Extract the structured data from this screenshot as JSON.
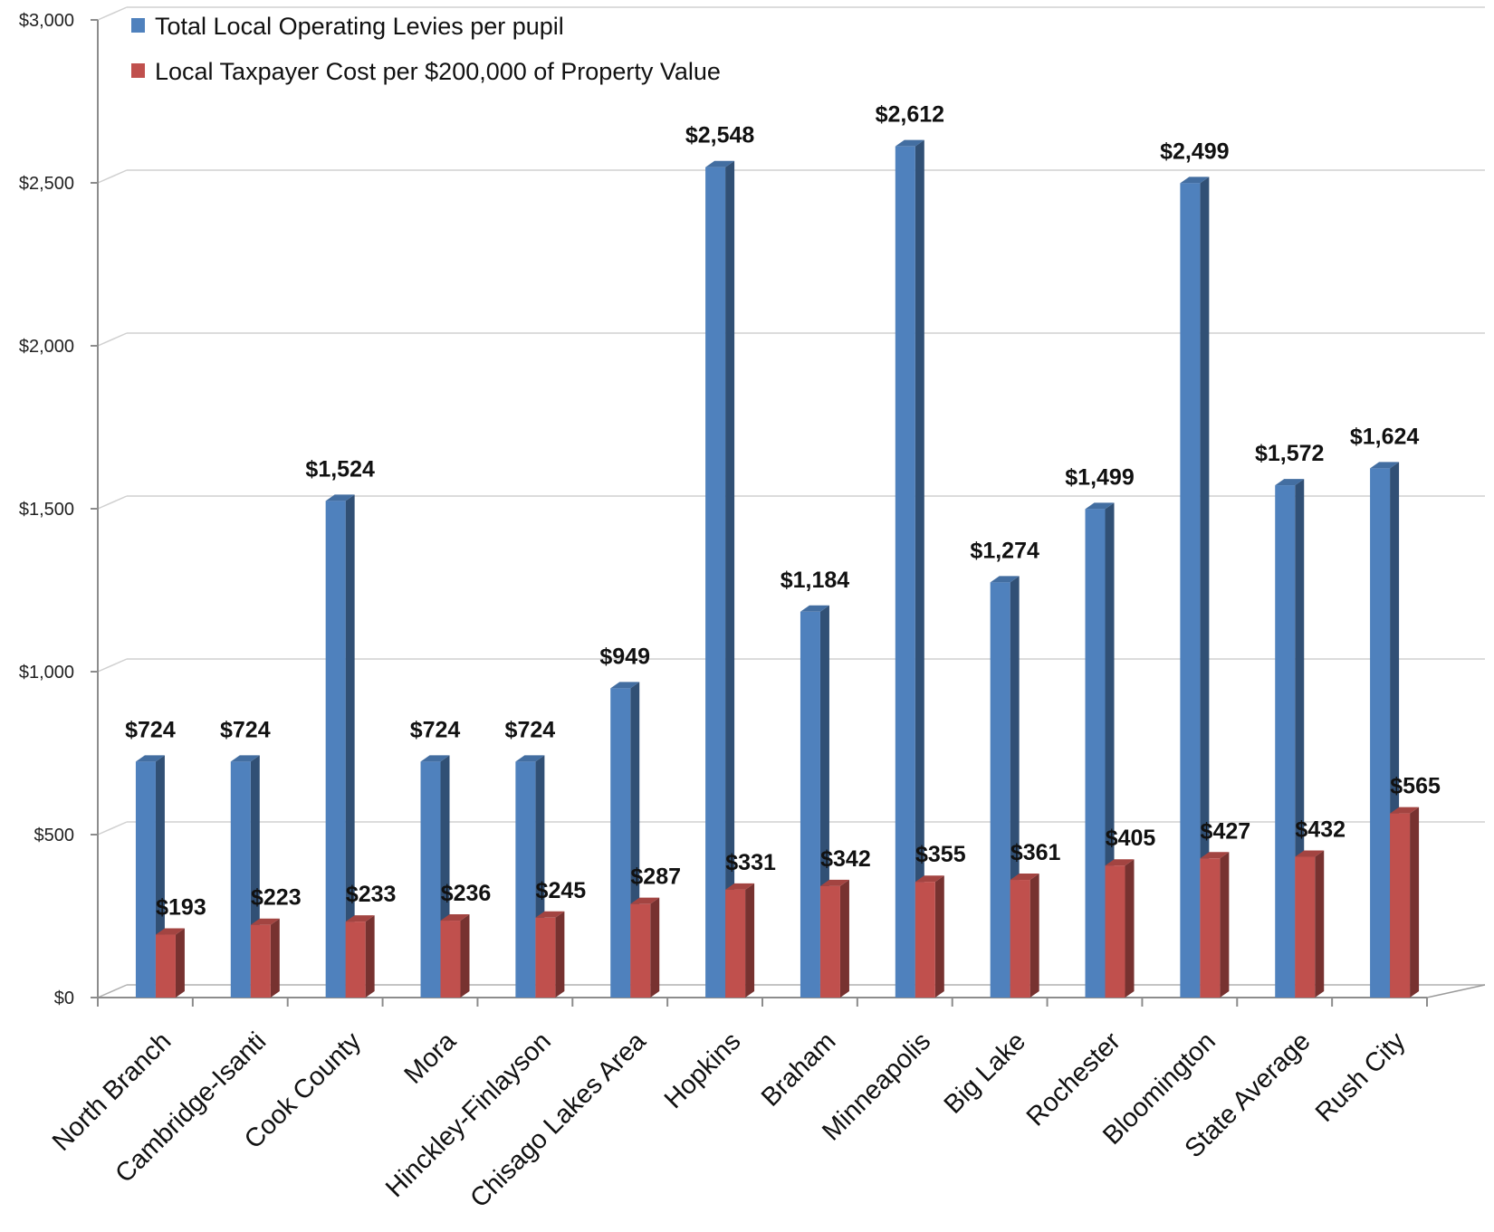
{
  "chart_data": {
    "type": "bar",
    "title": "",
    "xlabel": "",
    "ylabel": "",
    "ylim": [
      0,
      3000
    ],
    "yticks": [
      0,
      500,
      1000,
      1500,
      2000,
      2500,
      3000
    ],
    "ytick_labels": [
      "$0",
      "$500",
      "$1,000",
      "$1,500",
      "$2,000",
      "$2,500",
      "$3,000"
    ],
    "grid": true,
    "legend_position": "top-left",
    "categories": [
      "North Branch",
      "Cambridge-Isanti",
      "Cook County",
      "Mora",
      "Hinckley-Finlayson",
      "Chisago Lakes Area",
      "Hopkins",
      "Braham",
      "Minneapolis",
      "Big Lake",
      "Rochester",
      "Bloomington",
      "State Average",
      "Rush City"
    ],
    "series": [
      {
        "name": "Total Local  Operating Levies per pupil",
        "color": "#4f81bd",
        "values": [
          724,
          724,
          1524,
          724,
          724,
          949,
          2548,
          1184,
          2612,
          1274,
          1499,
          2499,
          1572,
          1624
        ],
        "labels": [
          "$724",
          "$724",
          "$1,524",
          "$724",
          "$724",
          "$949",
          "$2,548",
          "$1,184",
          "$2,612",
          "$1,274",
          "$1,499",
          "$2,499",
          "$1,572",
          "$1,624"
        ]
      },
      {
        "name": "Local Taxpayer Cost per $200,000 of Property Value",
        "color": "#c0504d",
        "values": [
          193,
          223,
          233,
          236,
          245,
          287,
          331,
          342,
          355,
          361,
          405,
          427,
          432,
          565
        ],
        "labels": [
          "$193",
          "$223",
          "$233",
          "$236",
          "$245",
          "$287",
          "$331",
          "$342",
          "$355",
          "$361",
          "$405",
          "$427",
          "$432",
          "$565"
        ]
      }
    ]
  }
}
